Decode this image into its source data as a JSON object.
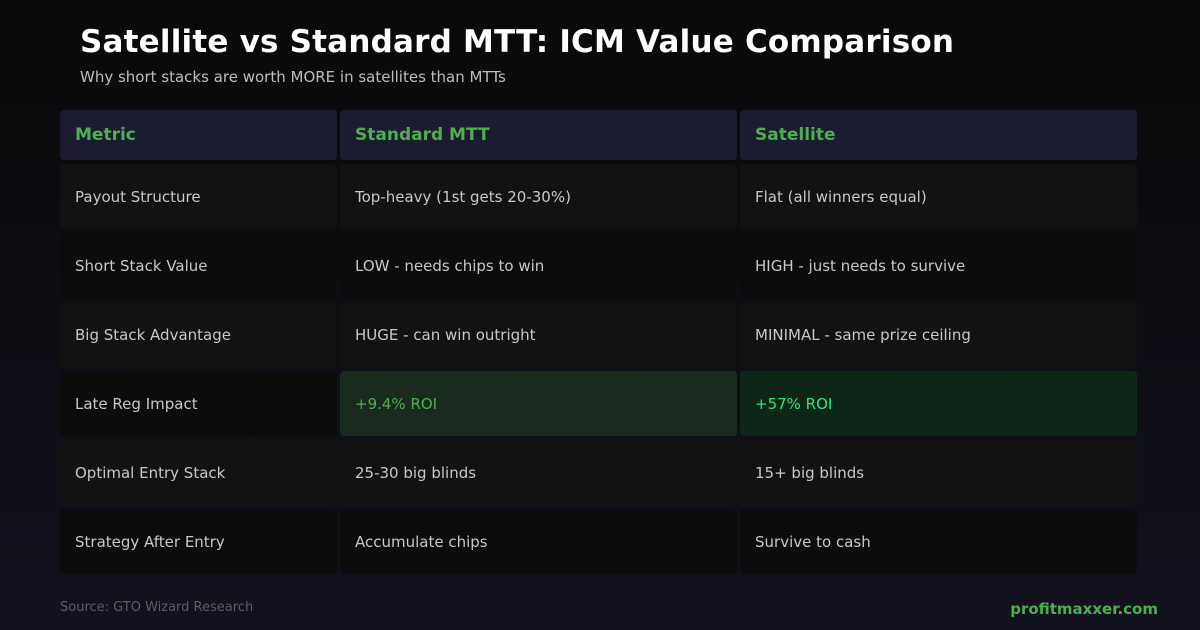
{
  "header": {
    "title": "Satellite vs Standard MTT: ICM Value Comparison",
    "subtitle": "Why short stacks are worth MORE in satellites than MTTs"
  },
  "table": {
    "columns": [
      "Metric",
      "Standard MTT",
      "Satellite"
    ],
    "rows": [
      {
        "metric": "Payout Structure",
        "mtt": "Top-heavy (1st gets 20-30%)",
        "satellite": "Flat (all winners equal)"
      },
      {
        "metric": "Short Stack Value",
        "mtt": "LOW - needs chips to win",
        "satellite": "HIGH - just needs to survive"
      },
      {
        "metric": "Big Stack Advantage",
        "mtt": "HUGE - can win outright",
        "satellite": "MINIMAL - same prize ceiling"
      },
      {
        "metric": "Late Reg Impact",
        "mtt": "+9.4% ROI",
        "satellite": "+57% ROI"
      },
      {
        "metric": "Optimal Entry Stack",
        "mtt": "25-30 big blinds",
        "satellite": "15+ big blinds"
      },
      {
        "metric": "Strategy After Entry",
        "mtt": "Accumulate chips",
        "satellite": "Survive to cash"
      }
    ]
  },
  "footer": {
    "source": "Source: GTO Wizard Research",
    "brand": "profitmaxxer.com"
  },
  "colors": {
    "accent_green": "#4caf50",
    "highlight_green": "#2ee87a",
    "header_bg": "#1c1c30"
  }
}
